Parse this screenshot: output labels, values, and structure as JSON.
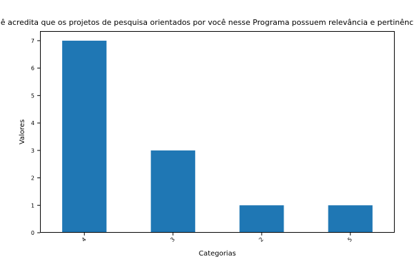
{
  "chart_data": {
    "type": "bar",
    "title": "ê acredita que os projetos de pesquisa orientados por você nesse Programa possuem relevância e pertinênc",
    "xlabel": "Categorias",
    "ylabel": "Valores",
    "categories": [
      "4",
      "3",
      "2",
      "5"
    ],
    "values": [
      7,
      3,
      1,
      1
    ],
    "yticks": [
      "0",
      "1",
      "2",
      "3",
      "4",
      "5",
      "6",
      "7"
    ],
    "ylim": [
      0,
      7.35
    ],
    "grid": false,
    "bar_color": "#1f77b4"
  }
}
